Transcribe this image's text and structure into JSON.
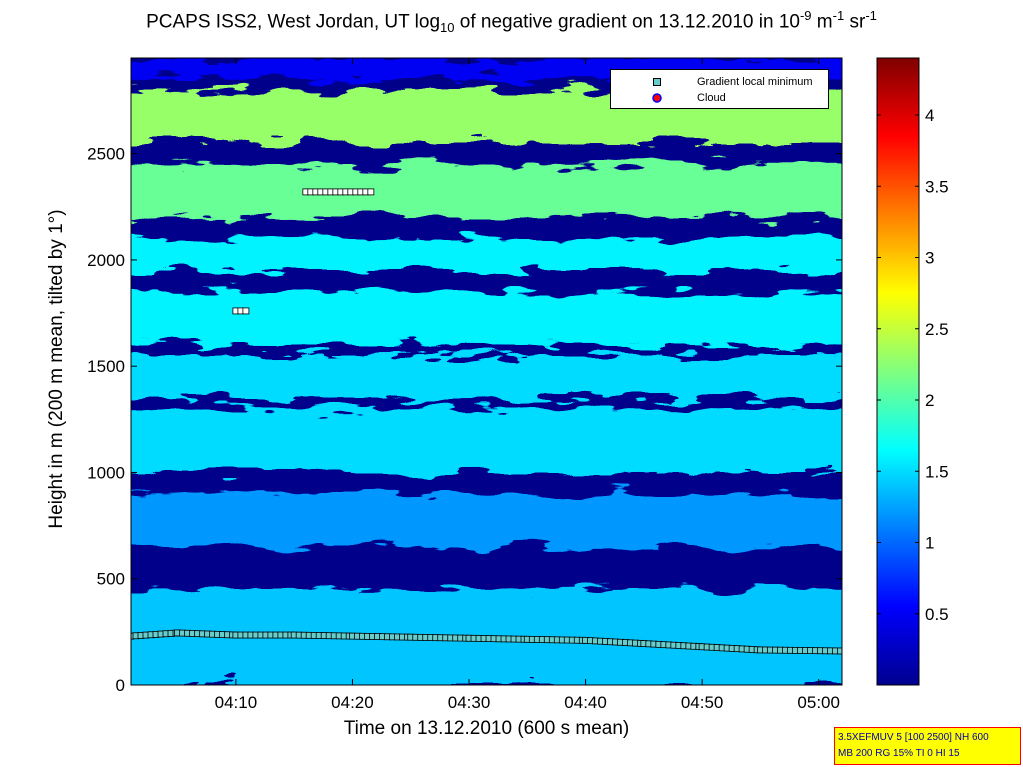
{
  "title": {
    "main": "PCAPS ISS2, West Jordan, UT log",
    "sub": "10",
    "mid": " of negative gradient on 13.12.2010 in 10",
    "sup1": "-9",
    "unit1": " m",
    "sup2": "-1",
    "unit2": " sr",
    "sup3": "-1"
  },
  "info_box": {
    "line1": "3.5XEFMUV 5 [100 2500] NH 600",
    "line2": "MB 200 RG 15% TI 0 HI 15"
  },
  "colors": {
    "gradient_marker_fill": "#66cccc",
    "cloud_marker_fill": "#ff0000",
    "cloud_marker_edge": "#0000ff"
  },
  "chart_data": {
    "type": "heatmap",
    "colormap": "jet",
    "xlabel": "Time on 13.12.2010 (600 s mean)",
    "ylabel": "Height in m (200 m mean, tilted by 1°)",
    "xlim": [
      "04:01",
      "05:02"
    ],
    "ylim": [
      0,
      2950
    ],
    "x_ticks": [
      "04:10",
      "04:20",
      "04:30",
      "04:40",
      "04:50",
      "05:00"
    ],
    "y_ticks": [
      0,
      500,
      1000,
      1500,
      2000,
      2500
    ],
    "colorbar": {
      "ticks": [
        0.5,
        1,
        1.5,
        2,
        2.5,
        3,
        3.5,
        4
      ],
      "range": [
        0,
        4.4
      ]
    },
    "legend": {
      "location": "top-right",
      "entries": [
        "Gradient local minimum",
        "Cloud"
      ]
    },
    "series": [
      {
        "name": "Gradient local minimum",
        "marker": "square",
        "points": [
          {
            "x": "04:01",
            "y": 230
          },
          {
            "x": "04:05",
            "y": 245
          },
          {
            "x": "04:10",
            "y": 235
          },
          {
            "x": "04:15",
            "y": 235
          },
          {
            "x": "04:20",
            "y": 230
          },
          {
            "x": "04:25",
            "y": 225
          },
          {
            "x": "04:30",
            "y": 220
          },
          {
            "x": "04:35",
            "y": 215
          },
          {
            "x": "04:40",
            "y": 210
          },
          {
            "x": "04:45",
            "y": 195
          },
          {
            "x": "04:50",
            "y": 180
          },
          {
            "x": "04:55",
            "y": 165
          },
          {
            "x": "05:02",
            "y": 160
          }
        ],
        "segments": [
          {
            "x_start": "04:16",
            "x_end": "04:22",
            "y": 2320
          },
          {
            "x_start": "04:10",
            "x_end": "04:11",
            "y": 1760
          }
        ]
      }
    ],
    "field": {
      "bands": [
        {
          "y_range": [
            2850,
            2950
          ],
          "level": 0.5
        },
        {
          "y_range": [
            2550,
            2800
          ],
          "level": 2.3
        },
        {
          "y_range": [
            2200,
            2450
          ],
          "level": 2.1
        },
        {
          "y_range": [
            1950,
            2100
          ],
          "level": 1.6
        },
        {
          "y_range": [
            1600,
            1850
          ],
          "level": 1.6
        },
        {
          "y_range": [
            1350,
            1550
          ],
          "level": 1.5
        },
        {
          "y_range": [
            1000,
            1300
          ],
          "level": 1.5
        },
        {
          "y_range": [
            650,
            900
          ],
          "level": 1.2
        },
        {
          "y_range": [
            0,
            450
          ],
          "level": 1.4
        }
      ],
      "background_level": 0.05
    }
  }
}
